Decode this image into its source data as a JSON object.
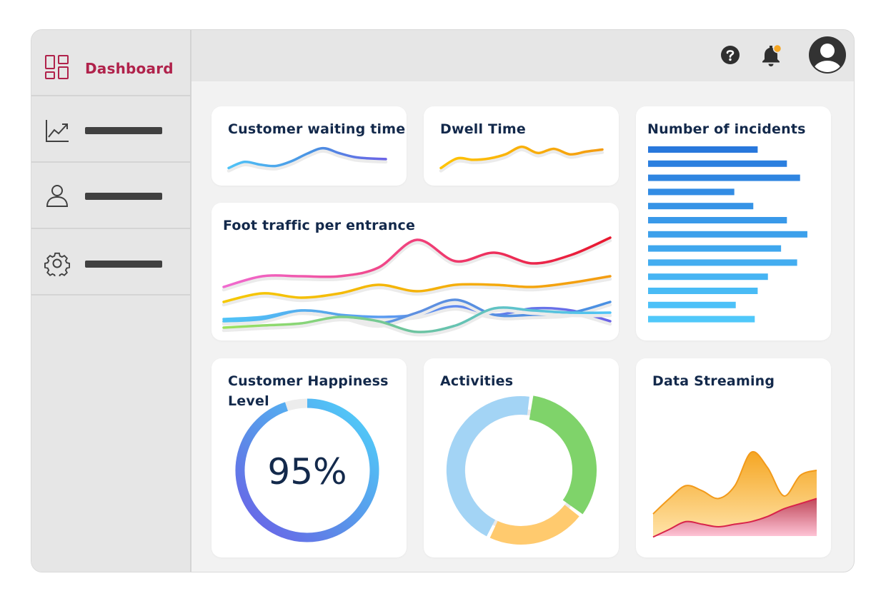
{
  "sidebar": {
    "items": [
      {
        "label": "Dashboard",
        "icon": "dashboard-grid-icon",
        "active": true
      },
      {
        "icon": "line-chart-icon"
      },
      {
        "icon": "user-icon"
      },
      {
        "icon": "gear-icon"
      }
    ],
    "active_color": "#b0224b"
  },
  "header": {
    "icons": [
      "help-icon",
      "bell-icon",
      "avatar"
    ],
    "notification_dot_color": "#f5a623"
  },
  "cards": {
    "waiting": {
      "title": "Customer waiting time"
    },
    "dwell": {
      "title": "Dwell Time"
    },
    "incidents": {
      "title": "Number of incidents"
    },
    "foot": {
      "title": "Foot traffic per entrance"
    },
    "happiness": {
      "title": "Customer Happiness Level",
      "value": "95%"
    },
    "activities": {
      "title": "Activities"
    },
    "streaming": {
      "title": "Data Streaming"
    }
  },
  "chart_data": [
    {
      "type": "line",
      "id": "waiting",
      "x": [
        0,
        1,
        2,
        3,
        4,
        5,
        6,
        7,
        8,
        9,
        10
      ],
      "series": [
        {
          "values": [
            20,
            38,
            30,
            26,
            40,
            62,
            78,
            64,
            52,
            48,
            46
          ]
        }
      ],
      "ylim": [
        0,
        100
      ]
    },
    {
      "type": "line",
      "id": "dwell",
      "x": [
        0,
        1,
        2,
        3,
        4,
        5,
        6,
        7,
        8,
        9,
        10
      ],
      "series": [
        {
          "values": [
            20,
            48,
            44,
            48,
            60,
            82,
            64,
            76,
            60,
            68,
            74
          ]
        }
      ],
      "ylim": [
        0,
        100
      ]
    },
    {
      "type": "bar",
      "id": "incidents",
      "orientation": "horizontal",
      "values": [
        75,
        95,
        104,
        59,
        72,
        95,
        109,
        91,
        102,
        82,
        75,
        60,
        73
      ],
      "xlim": [
        0,
        110
      ]
    },
    {
      "type": "line",
      "id": "foot",
      "x": [
        0,
        1,
        2,
        3,
        4,
        5,
        6,
        7,
        8,
        9,
        10
      ],
      "series": [
        {
          "values": [
            48,
            58,
            58,
            58,
            66,
            92,
            72,
            80,
            70,
            78,
            94
          ]
        },
        {
          "values": [
            34,
            42,
            38,
            42,
            50,
            44,
            50,
            50,
            48,
            52,
            58
          ]
        },
        {
          "values": [
            18,
            20,
            26,
            22,
            20,
            22,
            30,
            22,
            28,
            26,
            16
          ]
        },
        {
          "values": [
            16,
            18,
            26,
            22,
            14,
            24,
            36,
            22,
            22,
            24,
            34
          ]
        },
        {
          "values": [
            10,
            12,
            14,
            20,
            16,
            6,
            12,
            28,
            26,
            24,
            24
          ]
        }
      ],
      "ylim": [
        0,
        100
      ]
    },
    {
      "type": "pie",
      "id": "happiness",
      "values": [
        95,
        5
      ]
    },
    {
      "type": "pie",
      "id": "activities",
      "values": [
        33,
        22,
        45
      ]
    },
    {
      "type": "area",
      "id": "streaming",
      "x": [
        0,
        1,
        2,
        3,
        4,
        5,
        6,
        7,
        8,
        9,
        10
      ],
      "series": [
        {
          "values": [
            40,
            52,
            62,
            58,
            52,
            62,
            88,
            76,
            54,
            70,
            74
          ]
        },
        {
          "values": [
            22,
            28,
            34,
            32,
            30,
            32,
            34,
            38,
            44,
            48,
            52
          ]
        }
      ],
      "ylim": [
        0,
        100
      ]
    }
  ]
}
